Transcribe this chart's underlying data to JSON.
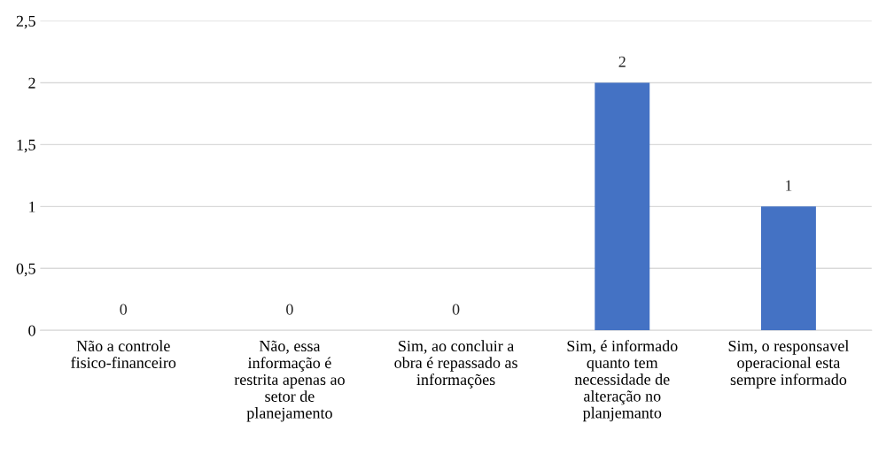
{
  "chart_data": {
    "type": "bar",
    "categories": [
      "Não a controle\nfisico-financeiro",
      "Não, essa\ninformação é\nrestrita apenas ao\nsetor de\nplanejamento",
      "Sim, ao concluir a\nobra é repassado as\ninformações",
      "Sim, é informado\nquanto tem\nnecessidade de\nalteração no\nplanjemanto",
      "Sim, o responsavel\noperacional esta\nsempre informado"
    ],
    "values": [
      0,
      0,
      0,
      2,
      1
    ],
    "color": "#4472c4",
    "ylim": [
      0,
      2.5
    ],
    "yticks": [
      0,
      {
        "value": 0.5,
        "label": "0,5"
      },
      1,
      {
        "value": 1.5,
        "label": "1,5"
      },
      2,
      {
        "value": 2.5,
        "label": "2,5"
      }
    ],
    "grid": "y",
    "data_labels": true
  }
}
